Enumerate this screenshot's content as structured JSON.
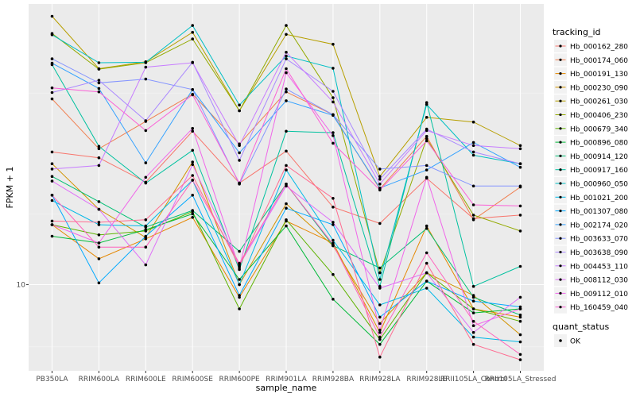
{
  "chart_data": {
    "type": "line",
    "xlabel": "sample_name",
    "ylabel": "FPKM + 1",
    "y_scale": "log",
    "grid": true,
    "background": "#ebebeb",
    "legend_position": "right",
    "categories": [
      "PB350LA",
      "RRIM600LA",
      "RRIM600LE",
      "RRIM600SE",
      "RRIM600PE",
      "RRIM901LA",
      "RRIM928BA",
      "RRIM928LA",
      "RRIM928LE",
      "RRII105LA_Control",
      "RRII105LA_Stressed"
    ],
    "y_ticks": [
      {
        "value": 10,
        "label": "10"
      }
    ],
    "series": [
      {
        "name": "Hb_000162_280",
        "color": "#F8766D",
        "values": [
          21.4,
          20.7,
          18.0,
          24.1,
          17.9,
          21.5,
          15.6,
          14.2,
          18.4,
          14.6,
          14.9
        ]
      },
      {
        "name": "Hb_000174_060",
        "color": "#F07E4E",
        "values": [
          29.0,
          21.8,
          25.5,
          29.8,
          22.4,
          30.2,
          26.5,
          17.3,
          23.4,
          14.5,
          17.5
        ]
      },
      {
        "name": "Hb_000191_130",
        "color": "#E58700",
        "values": [
          14.1,
          11.6,
          13.0,
          14.7,
          9.3,
          14.4,
          12.7,
          7.6,
          14.0,
          8.7,
          8.3
        ]
      },
      {
        "name": "Hb_000230_090",
        "color": "#D29300",
        "values": [
          20.0,
          15.4,
          13.1,
          20.2,
          10.0,
          15.9,
          12.5,
          8.0,
          10.7,
          9.4,
          7.5
        ]
      },
      {
        "name": "Hb_000261_030",
        "color": "#B79F00",
        "values": [
          46.6,
          34.5,
          35.9,
          42.5,
          27.1,
          42.0,
          39.7,
          18.6,
          26.1,
          25.4,
          22.2
        ]
      },
      {
        "name": "Hb_000406_230",
        "color": "#93AA00",
        "values": [
          42.2,
          34.4,
          35.7,
          40.9,
          27.1,
          44.2,
          29.2,
          10.7,
          23.1,
          14.9,
          13.6
        ]
      },
      {
        "name": "Hb_000679_340",
        "color": "#5EB300",
        "values": [
          14.1,
          13.3,
          13.6,
          15.2,
          8.7,
          14.5,
          10.6,
          7.3,
          10.7,
          8.7,
          8.1
        ]
      },
      {
        "name": "Hb_000896_080",
        "color": "#00BA38",
        "values": [
          13.2,
          12.7,
          13.7,
          15.0,
          10.3,
          14.0,
          9.2,
          7.1,
          10.2,
          8.5,
          8.7
        ]
      },
      {
        "name": "Hb_000914_120",
        "color": "#00BF74",
        "values": [
          18.6,
          16.1,
          13.9,
          15.3,
          12.1,
          17.8,
          12.5,
          11.0,
          13.8,
          9.3,
          8.4
        ]
      },
      {
        "name": "Hb_000917_160",
        "color": "#00C19F",
        "values": [
          35.3,
          22.1,
          17.9,
          21.6,
          10.9,
          24.1,
          23.9,
          9.9,
          28.4,
          9.9,
          11.1
        ]
      },
      {
        "name": "Hb_000960_050",
        "color": "#00BFC4",
        "values": [
          41.9,
          35.7,
          35.8,
          44.2,
          28.0,
          37.1,
          34.6,
          10.3,
          28.1,
          21.0,
          20.0
        ]
      },
      {
        "name": "Hb_001021_200",
        "color": "#00B8E7",
        "values": [
          16.2,
          14.1,
          14.0,
          18.2,
          10.0,
          19.3,
          12.9,
          8.9,
          9.8,
          7.4,
          7.2
        ]
      },
      {
        "name": "Hb_001307_080",
        "color": "#00A9FF",
        "values": [
          16.7,
          10.1,
          13.2,
          16.7,
          9.4,
          15.5,
          14.1,
          8.3,
          10.2,
          9.1,
          8.8
        ]
      },
      {
        "name": "Hb_002174_020",
        "color": "#35A2FF",
        "values": [
          35.6,
          30.8,
          20.1,
          30.6,
          21.3,
          28.7,
          26.4,
          17.4,
          19.3,
          22.6,
          19.6
        ]
      },
      {
        "name": "Hb_003633_070",
        "color": "#8494FF",
        "values": [
          36.5,
          31.8,
          32.5,
          30.6,
          17.8,
          30.7,
          26.5,
          19.4,
          19.8,
          17.6,
          17.6
        ]
      },
      {
        "name": "Hb_003638_090",
        "color": "#AA88FF",
        "values": [
          30.1,
          32.3,
          25.6,
          35.8,
          20.4,
          36.5,
          30.3,
          18.3,
          24.4,
          21.4,
          20.0
        ]
      },
      {
        "name": "Hb_004453_110",
        "color": "#C77CFF",
        "values": [
          19.4,
          19.8,
          34.8,
          35.7,
          22.2,
          37.9,
          28.5,
          17.8,
          24.2,
          22.2,
          21.8
        ]
      },
      {
        "name": "Hb_008112_030",
        "color": "#DF70F8",
        "values": [
          18.1,
          15.4,
          11.2,
          19.9,
          11.2,
          17.6,
          14.3,
          9.8,
          10.7,
          7.6,
          9.3
        ]
      },
      {
        "name": "Hb_009112_010",
        "color": "#F066EA",
        "values": [
          14.1,
          12.7,
          18.5,
          24.5,
          11.0,
          33.7,
          23.5,
          7.7,
          18.5,
          7.9,
          8.7
        ]
      },
      {
        "name": "Hb_160459_040",
        "color": "#FB61D7",
        "values": [
          30.9,
          30.2,
          24.2,
          29.7,
          17.9,
          34.5,
          22.5,
          17.2,
          22.8,
          15.8,
          15.7
        ]
      },
      {
        "name": "",
        "color": "#FF62BC",
        "values": [
          16.7,
          12.4,
          12.4,
          18.2,
          11.3,
          17.8,
          12.6,
          7.4,
          12.0,
          8.1,
          6.7
        ]
      },
      {
        "name": "",
        "color": "#FF6C91",
        "values": [
          14.4,
          14.3,
          14.5,
          18.7,
          11.1,
          19.8,
          16.4,
          6.6,
          11.3,
          7.1,
          6.5
        ]
      }
    ],
    "legend_title": "tracking_id",
    "legend_entries": [
      "Hb_000162_280",
      "Hb_000174_060",
      "Hb_000191_130",
      "Hb_000230_090",
      "Hb_000261_030",
      "Hb_000406_230",
      "Hb_000679_340",
      "Hb_000896_080",
      "Hb_000914_120",
      "Hb_000917_160",
      "Hb_000960_050",
      "Hb_001021_200",
      "Hb_001307_080",
      "Hb_002174_020",
      "Hb_003633_070",
      "Hb_003638_090",
      "Hb_004453_110",
      "Hb_008112_030",
      "Hb_009112_010",
      "Hb_160459_040"
    ],
    "shape_legend": {
      "title": "quant_status",
      "entries": [
        "OK"
      ]
    }
  }
}
